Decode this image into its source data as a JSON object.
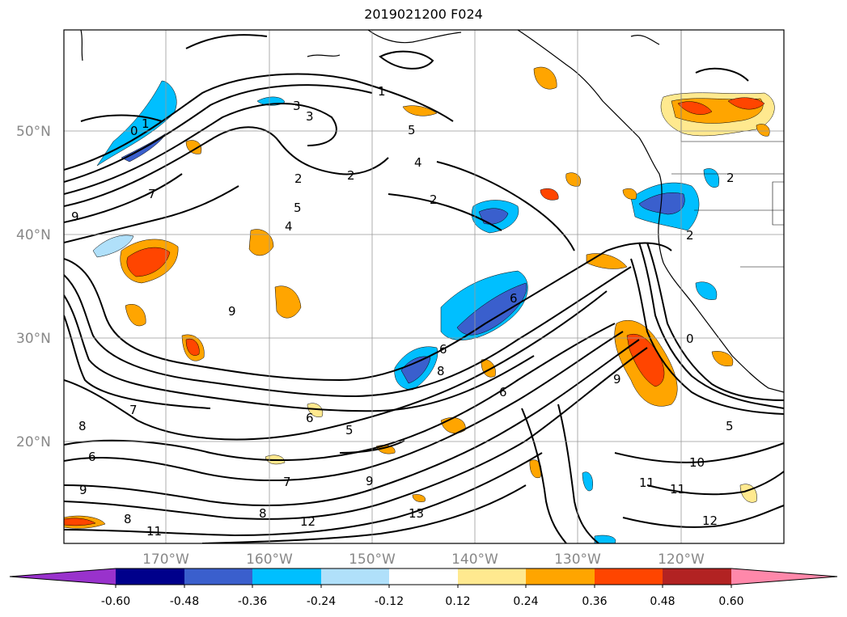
{
  "title": "2019021200 F024",
  "map": {
    "lat_labels": [
      "50°N",
      "40°N",
      "30°N",
      "20°N"
    ],
    "lon_labels": [
      "170°W",
      "160°W",
      "150°W",
      "140°W",
      "130°W",
      "120°W"
    ],
    "contour_labels": [
      "0",
      "1",
      "3",
      "3",
      "2",
      "2",
      "5",
      "4",
      "1",
      "2",
      "5",
      "4",
      "6",
      "7",
      "9",
      "8",
      "7",
      "6",
      "6",
      "5",
      "5",
      "6",
      "6",
      "7",
      "8",
      "8",
      "9",
      "10",
      "11",
      "11",
      "12",
      "12",
      "13",
      "11",
      "8",
      "9",
      "2",
      "2",
      "0",
      "9",
      "9"
    ]
  },
  "colorbar": {
    "tick_labels": [
      "-0.60",
      "-0.48",
      "-0.36",
      "-0.24",
      "-0.12",
      "0.12",
      "0.24",
      "0.36",
      "0.48",
      "0.60"
    ],
    "colors": [
      "#9932cc",
      "#00008b",
      "#3a5fcd",
      "#00bfff",
      "#b0e0fa",
      "#ffffff",
      "#ffe98f",
      "#ffa500",
      "#ff4500",
      "#b22222",
      "#ff88aa"
    ]
  }
}
